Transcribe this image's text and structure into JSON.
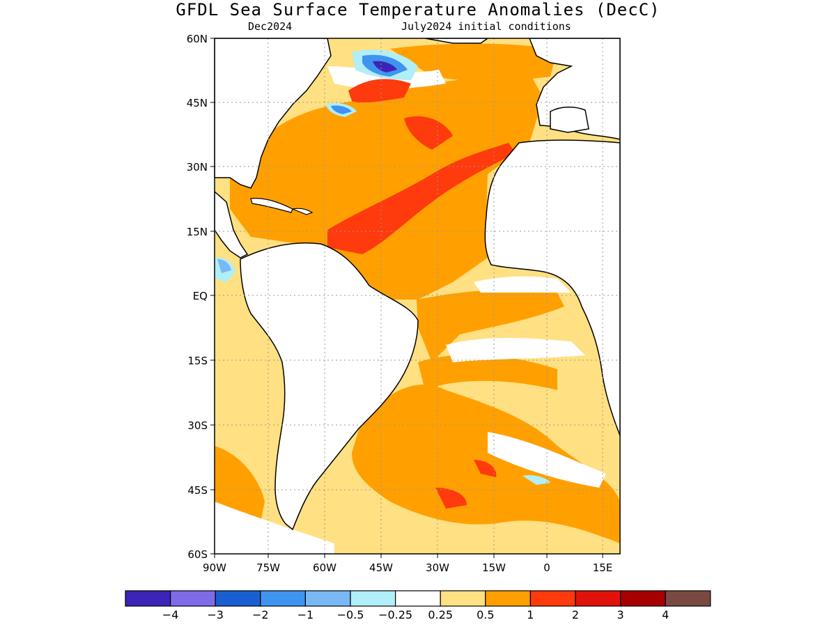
{
  "title": "GFDL Sea Surface Temperature Anomalies (DecC)",
  "subtitle_left": "Dec2024",
  "subtitle_right": "July2024 initial conditions",
  "axes": {
    "lon_ticks": [
      "90W",
      "75W",
      "60W",
      "45W",
      "30W",
      "15W",
      "0",
      "15E"
    ],
    "lat_ticks": [
      "60N",
      "45N",
      "30N",
      "15N",
      "EQ",
      "15S",
      "30S",
      "45S",
      "60S"
    ],
    "lon_range": [
      -90,
      18
    ],
    "lat_range": [
      -60,
      60
    ],
    "grid": "dotted"
  },
  "colorbar": {
    "colors": [
      "#3d24b8",
      "#7f6ae8",
      "#1a5fd1",
      "#3f94f0",
      "#78b9f5",
      "#b0eef8",
      "#ffffff",
      "#ffe082",
      "#ffa000",
      "#ff3a0c",
      "#e0120c",
      "#a60000",
      "#7a4a42"
    ],
    "labels": [
      "−4",
      "−3",
      "−2",
      "−1",
      "−0.5",
      "−0.25",
      "0.25",
      "0.5",
      "1",
      "2",
      "3",
      "4"
    ]
  },
  "colors": {
    "ocean_base": "#ffe082",
    "warm": "#ffa000",
    "hot": "#ff3a0c",
    "cool": "#b0eef8",
    "cold": "#3f94f0",
    "coldest": "#3d24b8",
    "land": "#ffffff",
    "coast": "#000000"
  }
}
